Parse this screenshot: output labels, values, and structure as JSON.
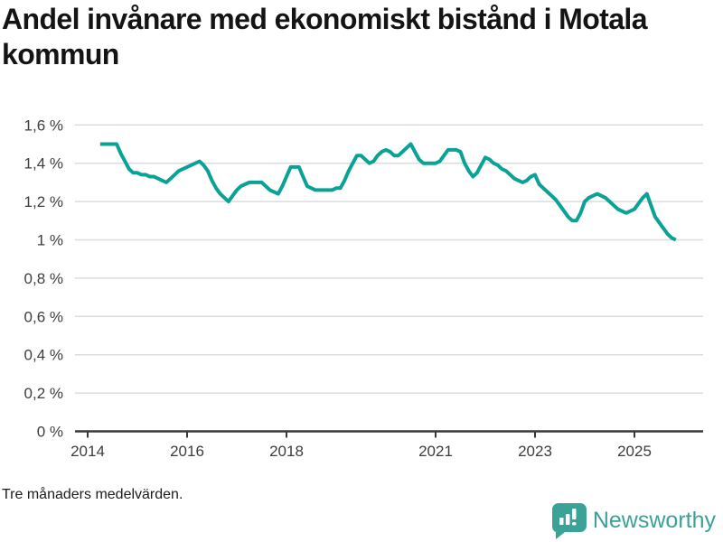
{
  "title": "Andel invånare med ekonomiskt bistånd i Motala kommun",
  "footer": {
    "note": "Tre månaders medelvärden."
  },
  "branding": {
    "name": "Newsworthy"
  },
  "colors": {
    "line": "#0aa296",
    "grid": "#dcdcdc",
    "axis": "#3a3a3a",
    "text": "#3d3d3d",
    "title": "#141414",
    "brand": "#3ba298"
  },
  "chart_data": {
    "type": "line",
    "title": "Andel invånare med ekonomiskt bistånd i Motala kommun",
    "note": "Tre månaders medelvärden.",
    "unit": "%",
    "xlabel": "",
    "ylabel": "",
    "ylim": [
      0,
      1.6
    ],
    "y_ticks": [
      0,
      0.2,
      0.4,
      0.6,
      0.8,
      1,
      1.2,
      1.4,
      1.6
    ],
    "y_tick_labels": [
      "0 %",
      "0,2 %",
      "0,4 %",
      "0,6 %",
      "0,8 %",
      "1 %",
      "1,2 %",
      "1,4 %",
      "1,6 %"
    ],
    "x_ticks": [
      2014,
      2016,
      2018,
      2021,
      2023,
      2025
    ],
    "x_tick_labels": [
      "2014",
      "2016",
      "2018",
      "2021",
      "2023",
      "2025"
    ],
    "xlim_years": [
      2013.75,
      2026.4
    ],
    "grid": "horizontal",
    "legend": "none",
    "series": [
      {
        "name": "Andel invånare med ekonomiskt bistånd",
        "color": "#0aa296",
        "frequency": "monthly",
        "start_year": 2014,
        "start_month": 4,
        "values": [
          1.5,
          1.5,
          1.5,
          1.5,
          1.5,
          1.45,
          1.41,
          1.37,
          1.35,
          1.35,
          1.34,
          1.34,
          1.33,
          1.33,
          1.32,
          1.31,
          1.3,
          1.32,
          1.34,
          1.36,
          1.37,
          1.38,
          1.39,
          1.4,
          1.41,
          1.39,
          1.36,
          1.31,
          1.27,
          1.24,
          1.22,
          1.2,
          1.23,
          1.26,
          1.28,
          1.29,
          1.3,
          1.3,
          1.3,
          1.3,
          1.28,
          1.26,
          1.25,
          1.24,
          1.28,
          1.33,
          1.38,
          1.38,
          1.38,
          1.33,
          1.28,
          1.27,
          1.26,
          1.26,
          1.26,
          1.26,
          1.26,
          1.27,
          1.27,
          1.31,
          1.36,
          1.4,
          1.44,
          1.44,
          1.42,
          1.4,
          1.41,
          1.44,
          1.46,
          1.47,
          1.46,
          1.44,
          1.44,
          1.46,
          1.48,
          1.5,
          1.46,
          1.42,
          1.4,
          1.4,
          1.4,
          1.4,
          1.41,
          1.44,
          1.47,
          1.47,
          1.47,
          1.46,
          1.4,
          1.36,
          1.33,
          1.35,
          1.39,
          1.43,
          1.42,
          1.4,
          1.39,
          1.37,
          1.36,
          1.34,
          1.32,
          1.31,
          1.3,
          1.31,
          1.33,
          1.34,
          1.29,
          1.27,
          1.25,
          1.23,
          1.21,
          1.18,
          1.15,
          1.12,
          1.1,
          1.1,
          1.14,
          1.2,
          1.22,
          1.23,
          1.24,
          1.23,
          1.22,
          1.2,
          1.18,
          1.16,
          1.15,
          1.14,
          1.15,
          1.16,
          1.19,
          1.22,
          1.24,
          1.18,
          1.12,
          1.09,
          1.06,
          1.03,
          1.01,
          1.0
        ]
      }
    ]
  }
}
